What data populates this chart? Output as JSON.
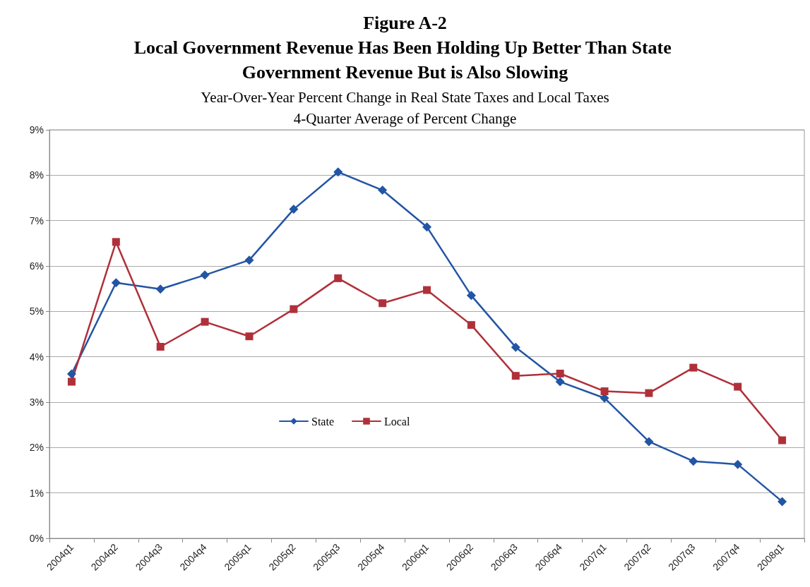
{
  "chart_data": {
    "type": "line",
    "title": "Figure A-2\nLocal Government Revenue Has Been Holding Up Better Than State Government Revenue But is Also Slowing",
    "subtitle": "Year-Over-Year Percent Change in Real State Taxes and Local Taxes\n4-Quarter Average of Percent Change",
    "categories": [
      "2004q1",
      "2004q2",
      "2004q3",
      "2004q4",
      "2005q1",
      "2005q2",
      "2005q3",
      "2005q4",
      "2006q1",
      "2006q2",
      "2006q3",
      "2006q4",
      "2007q1",
      "2007q2",
      "2007q3",
      "2007q4",
      "2008q1"
    ],
    "series": [
      {
        "name": "State",
        "color": "#2255a4",
        "marker": "diamond",
        "values": [
          3.62,
          5.63,
          5.49,
          5.8,
          6.13,
          7.25,
          8.07,
          7.67,
          6.86,
          5.35,
          4.21,
          3.45,
          3.09,
          2.13,
          1.7,
          1.63,
          0.81
        ]
      },
      {
        "name": "Local",
        "color": "#b0303a",
        "marker": "square",
        "values": [
          3.45,
          6.53,
          4.22,
          4.77,
          4.45,
          5.05,
          5.73,
          5.18,
          5.47,
          4.7,
          3.58,
          3.63,
          3.24,
          3.2,
          3.76,
          3.34,
          2.16
        ]
      }
    ],
    "ylim": [
      0,
      9
    ],
    "yticks": [
      {
        "value": 0,
        "label": "0%"
      },
      {
        "value": 1,
        "label": "1%"
      },
      {
        "value": 2,
        "label": "2%"
      },
      {
        "value": 3,
        "label": "3%"
      },
      {
        "value": 4,
        "label": "4%"
      },
      {
        "value": 5,
        "label": "5%"
      },
      {
        "value": 6,
        "label": "6%"
      },
      {
        "value": 7,
        "label": "7%"
      },
      {
        "value": 8,
        "label": "8%"
      },
      {
        "value": 9,
        "label": "9%"
      }
    ],
    "grid": "y",
    "legend": "center left",
    "line_style": "solid"
  }
}
